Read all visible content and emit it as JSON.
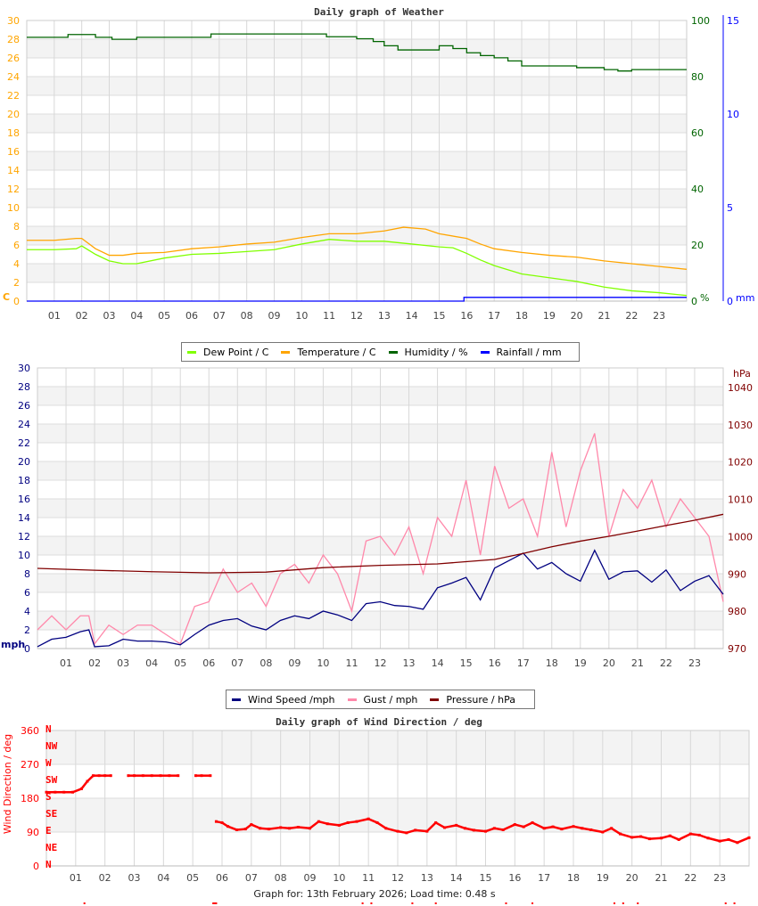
{
  "hours": [
    "01",
    "02",
    "03",
    "04",
    "05",
    "06",
    "07",
    "08",
    "09",
    "10",
    "11",
    "12",
    "13",
    "14",
    "15",
    "16",
    "17",
    "18",
    "19",
    "20",
    "21",
    "22",
    "23"
  ],
  "footer": "Graph for: 13th February 2026; Load time: 0.48 s",
  "chart_data": [
    {
      "type": "line",
      "title": "Daily graph of Weather",
      "xlabel": "",
      "xlim": [
        0,
        24
      ],
      "grid": true,
      "legend_position": "bottom",
      "axes": {
        "left": {
          "unit_label": "C",
          "ylim": [
            0,
            30
          ],
          "ticks": [
            "0",
            "2",
            "4",
            "6",
            "8",
            "10",
            "12",
            "14",
            "16",
            "18",
            "20",
            "22",
            "24",
            "26",
            "28",
            "30"
          ],
          "color": "#ffa500"
        },
        "right1": {
          "unit_label": "%",
          "ylim": [
            0,
            100
          ],
          "ticks": [
            "0",
            "20",
            "40",
            "60",
            "80",
            "100"
          ],
          "color": "#006400"
        },
        "right2": {
          "unit_label": "mm",
          "ylim": [
            0,
            15
          ],
          "ticks": [
            "0",
            "5",
            "10",
            "15"
          ],
          "color": "#0000ff"
        }
      },
      "series": [
        {
          "name": "Dew Point / C",
          "axis": "left",
          "color": "#80ff00",
          "x": [
            0,
            1,
            1.8,
            2,
            2.5,
            3,
            3.5,
            4,
            5,
            6,
            7,
            8,
            9,
            10,
            11,
            12,
            13,
            14,
            15,
            15.5,
            16,
            16.5,
            17,
            18,
            19,
            20,
            21,
            22,
            23,
            24
          ],
          "y": [
            5.5,
            5.5,
            5.6,
            5.9,
            5,
            4.3,
            4,
            4,
            4.6,
            5,
            5.1,
            5.3,
            5.5,
            6.1,
            6.6,
            6.4,
            6.4,
            6.1,
            5.8,
            5.7,
            5.1,
            4.4,
            3.8,
            2.9,
            2.5,
            2.1,
            1.5,
            1.1,
            0.9,
            0.6
          ]
        },
        {
          "name": "Temperature / C",
          "axis": "left",
          "color": "#ffa500",
          "x": [
            0,
            1,
            1.8,
            2,
            2.5,
            3,
            3.5,
            4,
            5,
            6,
            7,
            8,
            9,
            10,
            11,
            12,
            13,
            13.7,
            14.5,
            15,
            16,
            16.5,
            17,
            18,
            19,
            20,
            21,
            22,
            23,
            24
          ],
          "y": [
            6.5,
            6.5,
            6.7,
            6.7,
            5.6,
            4.9,
            4.9,
            5.1,
            5.2,
            5.6,
            5.8,
            6.1,
            6.3,
            6.8,
            7.2,
            7.2,
            7.5,
            7.9,
            7.7,
            7.2,
            6.7,
            6.1,
            5.6,
            5.2,
            4.9,
            4.7,
            4.3,
            4.0,
            3.7,
            3.4
          ]
        },
        {
          "name": "Humidity / %",
          "axis": "right1",
          "color": "#006400",
          "step": true,
          "x": [
            0,
            1.5,
            2.5,
            3.1,
            4,
            6.7,
            10.9,
            12,
            12.6,
            13,
            13.5,
            14.5,
            15,
            15.5,
            16,
            16.5,
            17,
            17.5,
            18,
            20,
            21,
            21.5,
            22,
            24
          ],
          "y": [
            94,
            95,
            94,
            93.3,
            94,
            95.2,
            94.2,
            93.5,
            92.5,
            91,
            89.5,
            89.5,
            91,
            90,
            88.5,
            87.5,
            86.7,
            85.6,
            83.8,
            83.2,
            82.5,
            82,
            82.5,
            82.5
          ]
        },
        {
          "name": "Rainfall / mm",
          "axis": "right2",
          "color": "#0000ff",
          "step": true,
          "x": [
            0,
            15.9,
            24
          ],
          "y": [
            0,
            0.2,
            0.2
          ]
        }
      ]
    },
    {
      "type": "line",
      "title": "",
      "xlim": [
        0,
        24
      ],
      "grid": true,
      "legend_position": "bottom",
      "axes": {
        "left": {
          "unit_label": "mph",
          "ylim": [
            0,
            30
          ],
          "ticks": [
            "0",
            "2",
            "4",
            "6",
            "8",
            "10",
            "12",
            "14",
            "16",
            "18",
            "20",
            "22",
            "24",
            "26",
            "28",
            "30"
          ],
          "color": "#000080"
        },
        "right": {
          "unit_label": "hPa",
          "ylim": [
            970,
            1040
          ],
          "ticks": [
            "970",
            "980",
            "990",
            "1000",
            "1010",
            "1020",
            "1030",
            "1040"
          ],
          "color": "#800000"
        }
      },
      "series": [
        {
          "name": "Wind Speed /mph",
          "axis": "left",
          "color": "#000080",
          "x": [
            0,
            0.5,
            1,
            1.5,
            1.8,
            2,
            2.5,
            3,
            3.5,
            4,
            4.5,
            5,
            5.5,
            6,
            6.5,
            7,
            7.5,
            8,
            8.5,
            9,
            9.5,
            10,
            10.5,
            11,
            11.5,
            12,
            12.5,
            13,
            13.5,
            14,
            14.5,
            15,
            15.5,
            16,
            16.5,
            17,
            17.5,
            18,
            18.5,
            19,
            19.5,
            20,
            20.5,
            21,
            21.5,
            22,
            22.5,
            23,
            23.5,
            24
          ],
          "y": [
            0.2,
            1,
            1.2,
            1.8,
            2,
            0.2,
            0.3,
            1,
            0.8,
            0.8,
            0.7,
            0.4,
            1.5,
            2.5,
            3,
            3.2,
            2.4,
            2,
            3,
            3.5,
            3.2,
            4,
            3.6,
            3,
            4.8,
            5,
            4.6,
            4.5,
            4.2,
            6.5,
            7,
            7.6,
            5.2,
            8.6,
            9.4,
            10.2,
            8.5,
            9.2,
            8,
            7.2,
            10.5,
            7.4,
            8.2,
            8.3,
            7.1,
            8.4,
            6.2,
            7.2,
            7.8,
            5.8
          ]
        },
        {
          "name": "Gust / mph",
          "axis": "left",
          "color": "#ff88aa",
          "x": [
            0,
            0.5,
            1,
            1.5,
            1.8,
            2,
            2.5,
            3,
            3.5,
            4,
            4.5,
            5,
            5.5,
            6,
            6.5,
            7,
            7.5,
            8,
            8.5,
            9,
            9.5,
            10,
            10.5,
            11,
            11.5,
            12,
            12.5,
            13,
            13.5,
            14,
            14.5,
            15,
            15.5,
            16,
            16.5,
            17,
            17.5,
            18,
            18.5,
            19,
            19.5,
            20,
            20.5,
            21,
            21.5,
            22,
            22.5,
            23,
            23.5,
            24
          ],
          "y": [
            2,
            3.5,
            2,
            3.5,
            3.5,
            0.5,
            2.5,
            1.5,
            2.5,
            2.5,
            1.5,
            0.5,
            4.5,
            5,
            8.5,
            6,
            7,
            4.5,
            8,
            9,
            7,
            10,
            8,
            4,
            11.5,
            12,
            10,
            13,
            8,
            14,
            12,
            18,
            10,
            19.5,
            15,
            16,
            12,
            21,
            13,
            19,
            23,
            12,
            17,
            15,
            18,
            13,
            16,
            14,
            12,
            5
          ]
        },
        {
          "name": "Pressure / hPa",
          "axis": "right",
          "color": "#800000",
          "x": [
            0,
            2,
            4,
            6,
            8,
            10,
            12,
            14,
            16,
            17,
            18,
            19,
            20,
            21,
            22,
            23,
            24
          ],
          "y": [
            991.5,
            991,
            990.6,
            990.3,
            990.5,
            991.7,
            992.3,
            992.7,
            993.9,
            995.5,
            997.3,
            998.8,
            1000.1,
            1001.5,
            1003,
            1004.4,
            1006
          ]
        }
      ]
    },
    {
      "type": "scatter",
      "title": "Daily graph of Wind Direction / deg",
      "ylabel": "Wind Direction / deg",
      "xlim": [
        0,
        24
      ],
      "ylim": [
        0,
        360
      ],
      "grid": true,
      "yticks": [
        "0",
        "90",
        "180",
        "270",
        "360"
      ],
      "compass_labels": [
        "N",
        "NE",
        "E",
        "SE",
        "S",
        "SW",
        "W",
        "NW",
        "N"
      ],
      "color": "#ff0000",
      "series": [
        {
          "name": "",
          "x": [
            0,
            0.3,
            0.6,
            0.9,
            1.2,
            1.4,
            1.6,
            1.8,
            2,
            2.2,
            2.8,
            3,
            3.3,
            3.6,
            3.9,
            4.2,
            4.5,
            5.1,
            5.3,
            5.6,
            5.8,
            6,
            6.2,
            6.5,
            6.8,
            7,
            7.3,
            7.6,
            8,
            8.3,
            8.6,
            9,
            9.3,
            9.6,
            10,
            10.3,
            10.6,
            11,
            11.3,
            11.6,
            12,
            12.3,
            12.6,
            13,
            13.3,
            13.6,
            14,
            14.3,
            14.6,
            15,
            15.3,
            15.6,
            16,
            16.3,
            16.6,
            17,
            17.3,
            17.6,
            18,
            18.3,
            18.6,
            19,
            19.3,
            19.6,
            20,
            20.3,
            20.6,
            21,
            21.3,
            21.6,
            22,
            22.3,
            22.6,
            23,
            23.3,
            23.6,
            24
          ],
          "y": [
            196,
            196,
            196,
            196,
            205,
            225,
            240,
            240,
            240,
            240,
            240,
            240,
            240,
            240,
            240,
            240,
            240,
            240,
            240,
            240,
            118,
            115,
            105,
            96,
            98,
            110,
            100,
            98,
            102,
            100,
            103,
            100,
            118,
            112,
            108,
            115,
            118,
            125,
            115,
            100,
            92,
            88,
            95,
            92,
            115,
            102,
            108,
            100,
            95,
            92,
            100,
            96,
            110,
            104,
            115,
            100,
            104,
            98,
            105,
            100,
            96,
            90,
            100,
            85,
            76,
            78,
            72,
            74,
            80,
            70,
            85,
            82,
            74,
            66,
            70,
            62,
            75
          ]
        },
        {
          "name": "",
          "offscale": true,
          "x": [
            1.3,
            5.7,
            5.75,
            5.8,
            10.8,
            11.1,
            12.5,
            13.3,
            15.7,
            16.6,
            19.4,
            19.7,
            20.2,
            23.2,
            23.5
          ],
          "y": [
            0,
            0,
            0,
            0,
            0,
            0,
            0,
            0,
            0,
            0,
            0,
            0,
            0,
            0,
            0
          ]
        }
      ]
    }
  ],
  "legend1": {
    "items": [
      {
        "label": "Dew Point / C",
        "color": "#80ff00"
      },
      {
        "label": "Temperature / C",
        "color": "#ffa500"
      },
      {
        "label": "Humidity / %",
        "color": "#006400"
      },
      {
        "label": "Rainfall / mm",
        "color": "#0000ff"
      }
    ]
  },
  "legend2": {
    "items": [
      {
        "label": "Wind Speed /mph",
        "color": "#000080"
      },
      {
        "label": "Gust / mph",
        "color": "#ff88aa"
      },
      {
        "label": "Pressure / hPa",
        "color": "#800000"
      }
    ]
  }
}
